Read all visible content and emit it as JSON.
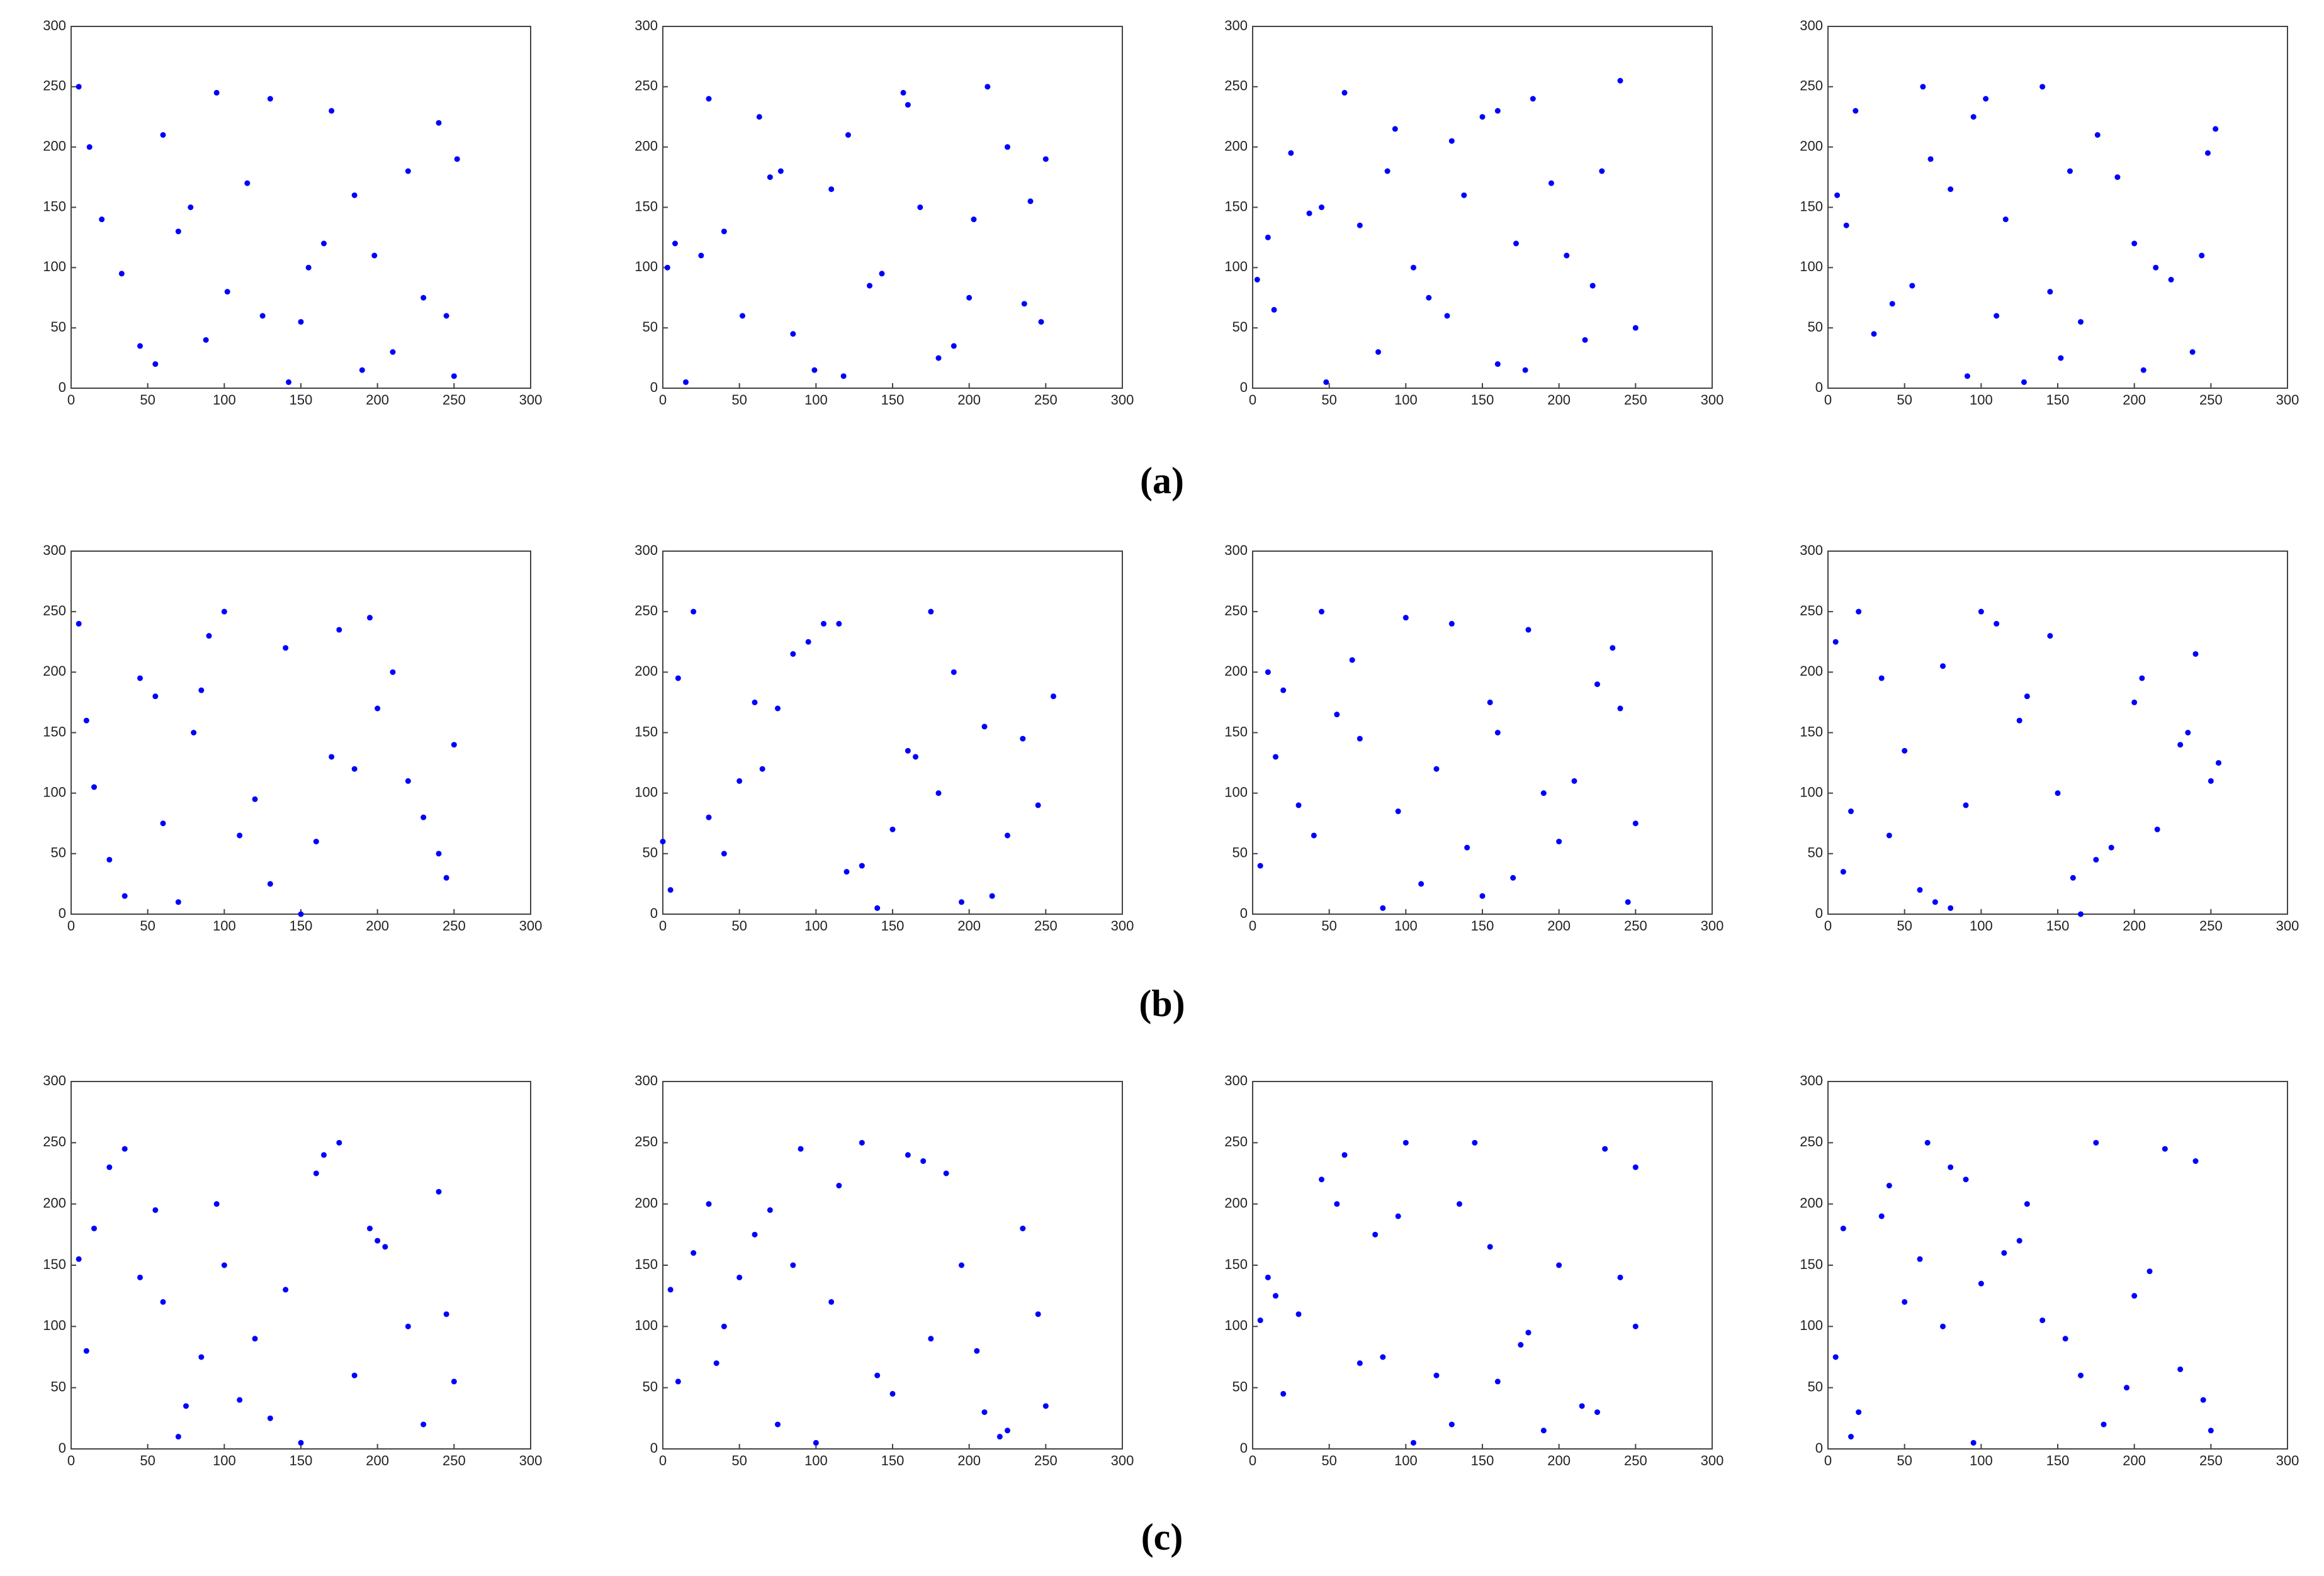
{
  "panel_labels": [
    "(a)",
    "(b)",
    "(c)"
  ],
  "chart_data": [
    {
      "type": "scatter",
      "color": "#0000ff",
      "xlim": [
        0,
        300
      ],
      "ylim": [
        0,
        300
      ],
      "xticks": [
        0,
        50,
        100,
        150,
        200,
        250,
        300
      ],
      "yticks": [
        0,
        50,
        100,
        150,
        200,
        250,
        300
      ],
      "x": [
        12,
        45,
        78,
        102,
        130,
        165,
        190,
        220,
        245,
        5,
        33,
        60,
        88,
        115,
        142,
        170,
        198,
        230,
        252,
        20,
        55,
        95,
        125,
        155,
        185,
        210,
        240,
        70,
        150,
        250
      ],
      "y": [
        200,
        35,
        150,
        80,
        240,
        120,
        15,
        180,
        60,
        250,
        95,
        210,
        40,
        170,
        5,
        230,
        110,
        75,
        190,
        140,
        20,
        245,
        60,
        100,
        160,
        30,
        220,
        130,
        55,
        10
      ]
    },
    {
      "type": "scatter",
      "color": "#0000ff",
      "xlim": [
        0,
        300
      ],
      "ylim": [
        0,
        300
      ],
      "xticks": [
        0,
        50,
        100,
        150,
        200,
        250,
        300
      ],
      "yticks": [
        0,
        50,
        100,
        150,
        200,
        250,
        300
      ],
      "x": [
        8,
        30,
        52,
        77,
        99,
        121,
        143,
        168,
        190,
        212,
        236,
        250,
        15,
        40,
        63,
        85,
        110,
        135,
        157,
        180,
        203,
        225,
        247,
        25,
        70,
        118,
        160,
        200,
        240,
        3
      ],
      "y": [
        120,
        240,
        60,
        180,
        15,
        210,
        95,
        150,
        35,
        250,
        70,
        190,
        5,
        130,
        225,
        45,
        165,
        85,
        245,
        25,
        140,
        200,
        55,
        110,
        175,
        10,
        235,
        75,
        155,
        100
      ]
    },
    {
      "type": "scatter",
      "color": "#0000ff",
      "xlim": [
        0,
        300
      ],
      "ylim": [
        0,
        300
      ],
      "xticks": [
        0,
        50,
        100,
        150,
        200,
        250,
        300
      ],
      "yticks": [
        0,
        50,
        100,
        150,
        200,
        250,
        300
      ],
      "x": [
        250,
        228,
        205,
        183,
        160,
        138,
        115,
        93,
        70,
        48,
        25,
        3,
        240,
        217,
        195,
        172,
        150,
        127,
        105,
        82,
        60,
        37,
        14,
        130,
        178,
        88,
        222,
        45,
        160,
        10
      ],
      "y": [
        50,
        180,
        110,
        240,
        20,
        160,
        75,
        215,
        135,
        5,
        195,
        90,
        255,
        40,
        170,
        120,
        225,
        60,
        100,
        30,
        245,
        145,
        65,
        205,
        15,
        180,
        85,
        150,
        230,
        125
      ]
    },
    {
      "type": "scatter",
      "color": "#0000ff",
      "xlim": [
        0,
        300
      ],
      "ylim": [
        0,
        300
      ],
      "xticks": [
        0,
        50,
        100,
        150,
        200,
        250,
        300
      ],
      "yticks": [
        0,
        50,
        100,
        150,
        200,
        250,
        300
      ],
      "x": [
        18,
        42,
        67,
        91,
        116,
        140,
        165,
        189,
        214,
        238,
        253,
        6,
        55,
        103,
        152,
        200,
        248,
        30,
        80,
        128,
        176,
        224,
        12,
        62,
        110,
        158,
        206,
        244,
        95,
        145
      ],
      "y": [
        230,
        70,
        190,
        10,
        140,
        250,
        55,
        175,
        100,
        30,
        215,
        160,
        85,
        240,
        25,
        120,
        195,
        45,
        165,
        5,
        210,
        90,
        135,
        250,
        60,
        180,
        15,
        110,
        225,
        80
      ]
    },
    {
      "type": "scatter",
      "color": "#0000ff",
      "xlim": [
        0,
        300
      ],
      "ylim": [
        0,
        300
      ],
      "xticks": [
        0,
        50,
        100,
        150,
        200,
        250,
        300
      ],
      "yticks": [
        0,
        50,
        100,
        150,
        200,
        250,
        300
      ],
      "x": [
        35,
        210,
        120,
        5,
        160,
        80,
        245,
        55,
        185,
        100,
        230,
        25,
        140,
        70,
        200,
        15,
        175,
        110,
        250,
        45,
        130,
        90,
        220,
        60,
        195,
        150,
        10,
        240,
        85,
        170
      ],
      "y": [
        15,
        200,
        95,
        240,
        60,
        150,
        30,
        180,
        120,
        250,
        80,
        45,
        220,
        10,
        170,
        105,
        235,
        65,
        140,
        195,
        25,
        230,
        110,
        75,
        245,
        0,
        160,
        50,
        185,
        130
      ]
    },
    {
      "type": "scatter",
      "color": "#0000ff",
      "xlim": [
        0,
        300
      ],
      "ylim": [
        0,
        300
      ],
      "xticks": [
        0,
        50,
        100,
        150,
        200,
        250,
        300
      ],
      "yticks": [
        0,
        50,
        100,
        150,
        200,
        250,
        300
      ],
      "x": [
        245,
        20,
        130,
        75,
        190,
        5,
        160,
        105,
        225,
        50,
        140,
        85,
        210,
        30,
        175,
        120,
        255,
        65,
        195,
        10,
        150,
        95,
        235,
        40,
        180,
        115,
        215,
        60,
        0,
        165
      ],
      "y": [
        90,
        250,
        40,
        170,
        200,
        20,
        135,
        240,
        65,
        110,
        5,
        215,
        155,
        80,
        250,
        35,
        180,
        120,
        10,
        195,
        70,
        225,
        145,
        50,
        100,
        240,
        15,
        175,
        60,
        130
      ]
    },
    {
      "type": "scatter",
      "color": "#0000ff",
      "xlim": [
        0,
        300
      ],
      "ylim": [
        0,
        300
      ],
      "xticks": [
        0,
        50,
        100,
        150,
        200,
        250,
        300
      ],
      "yticks": [
        0,
        50,
        100,
        150,
        200,
        250,
        300
      ],
      "x": [
        100,
        15,
        200,
        65,
        150,
        240,
        30,
        180,
        120,
        5,
        225,
        85,
        160,
        45,
        250,
        110,
        10,
        190,
        70,
        140,
        235,
        55,
        170,
        95,
        20,
        210,
        130,
        245,
        40,
        155
      ],
      "y": [
        245,
        130,
        60,
        210,
        15,
        170,
        90,
        235,
        120,
        40,
        190,
        5,
        150,
        250,
        75,
        25,
        200,
        100,
        145,
        55,
        220,
        165,
        30,
        85,
        185,
        110,
        240,
        10,
        65,
        175
      ]
    },
    {
      "type": "scatter",
      "color": "#0000ff",
      "xlim": [
        0,
        300
      ],
      "ylim": [
        0,
        300
      ],
      "xticks": [
        0,
        50,
        100,
        150,
        200,
        250,
        300
      ],
      "yticks": [
        0,
        50,
        100,
        150,
        200,
        250,
        300
      ],
      "x": [
        200,
        60,
        145,
        15,
        230,
        100,
        175,
        35,
        250,
        80,
        125,
        5,
        215,
        50,
        160,
        240,
        90,
        20,
        185,
        130,
        70,
        255,
        110,
        40,
        205,
        150,
        10,
        235,
        75,
        165
      ],
      "y": [
        175,
        20,
        230,
        85,
        140,
        250,
        45,
        195,
        110,
        5,
        160,
        225,
        70,
        135,
        30,
        215,
        90,
        250,
        55,
        180,
        10,
        125,
        240,
        65,
        195,
        100,
        35,
        150,
        205,
        0
      ]
    },
    {
      "type": "scatter",
      "color": "#0000ff",
      "xlim": [
        0,
        300
      ],
      "ylim": [
        0,
        300
      ],
      "xticks": [
        0,
        50,
        100,
        150,
        200,
        250,
        300
      ],
      "yticks": [
        0,
        50,
        100,
        150,
        200,
        250,
        300
      ],
      "x": [
        25,
        110,
        195,
        60,
        150,
        240,
        5,
        85,
        175,
        130,
        45,
        220,
        95,
        250,
        15,
        165,
        70,
        205,
        120,
        35,
        185,
        140,
        230,
        55,
        100,
        10,
        160,
        75,
        245,
        200
      ],
      "y": [
        230,
        40,
        180,
        120,
        5,
        210,
        155,
        75,
        250,
        25,
        140,
        100,
        200,
        55,
        180,
        240,
        10,
        165,
        90,
        245,
        60,
        130,
        20,
        195,
        150,
        80,
        225,
        35,
        110,
        170
      ]
    },
    {
      "type": "scatter",
      "color": "#0000ff",
      "xlim": [
        0,
        300
      ],
      "ylim": [
        0,
        300
      ],
      "xticks": [
        0,
        50,
        100,
        150,
        200,
        250,
        300
      ],
      "yticks": [
        0,
        50,
        100,
        150,
        200,
        250,
        300
      ],
      "x": [
        140,
        30,
        220,
        90,
        5,
        175,
        60,
        250,
        115,
        195,
        40,
        160,
        75,
        235,
        10,
        130,
        205,
        50,
        100,
        185,
        245,
        20,
        150,
        70,
        225,
        110,
        35,
        170,
        85,
        210
      ],
      "y": [
        60,
        200,
        10,
        245,
        130,
        90,
        175,
        35,
        215,
        150,
        100,
        240,
        20,
        180,
        55,
        250,
        80,
        140,
        5,
        225,
        110,
        160,
        45,
        195,
        15,
        120,
        70,
        235,
        150,
        30
      ]
    },
    {
      "type": "scatter",
      "color": "#0000ff",
      "xlim": [
        0,
        300
      ],
      "ylim": [
        0,
        300
      ],
      "xticks": [
        0,
        50,
        100,
        150,
        200,
        250,
        300
      ],
      "yticks": [
        0,
        50,
        100,
        150,
        200,
        250,
        300
      ],
      "x": [
        55,
        180,
        10,
        130,
        230,
        80,
        160,
        30,
        250,
        105,
        200,
        70,
        145,
        15,
        215,
        95,
        175,
        45,
        240,
        120,
        5,
        190,
        60,
        155,
        225,
        85,
        135,
        20,
        250,
        100
      ],
      "y": [
        200,
        95,
        140,
        20,
        245,
        175,
        55,
        110,
        230,
        5,
        150,
        70,
        250,
        125,
        35,
        190,
        85,
        220,
        140,
        60,
        105,
        15,
        240,
        165,
        30,
        75,
        200,
        45,
        100,
        250
      ]
    },
    {
      "type": "scatter",
      "color": "#0000ff",
      "xlim": [
        0,
        300
      ],
      "ylim": [
        0,
        300
      ],
      "xticks": [
        0,
        50,
        100,
        150,
        200,
        250,
        300
      ],
      "yticks": [
        0,
        50,
        100,
        150,
        200,
        250,
        300
      ],
      "x": [
        95,
        10,
        175,
        50,
        230,
        130,
        20,
        210,
        80,
        155,
        250,
        40,
        115,
        195,
        65,
        140,
        5,
        240,
        100,
        180,
        35,
        165,
        220,
        75,
        125,
        15,
        200,
        90,
        245,
        60
      ],
      "y": [
        5,
        180,
        250,
        120,
        65,
        200,
        30,
        145,
        230,
        90,
        15,
        215,
        160,
        50,
        250,
        105,
        75,
        235,
        135,
        20,
        190,
        60,
        245,
        100,
        170,
        10,
        125,
        220,
        40,
        155
      ]
    }
  ]
}
